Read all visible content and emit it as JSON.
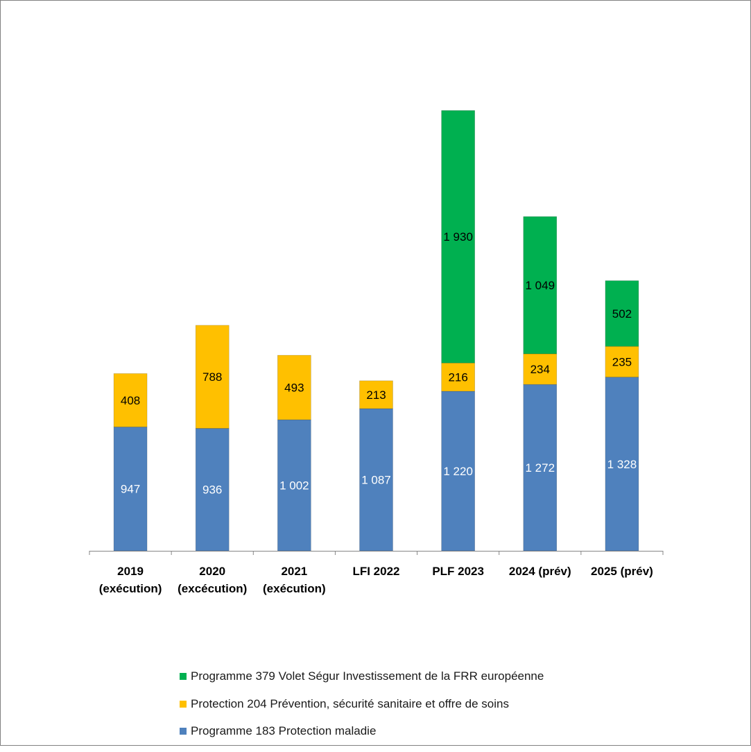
{
  "chart_data": {
    "type": "bar",
    "stacked": true,
    "categories": [
      [
        "2019",
        "(exécution)"
      ],
      [
        "2020",
        "(excécution)"
      ],
      [
        "2021",
        "(exécution)"
      ],
      [
        "LFI 2022"
      ],
      [
        "PLF 2023"
      ],
      [
        "2024 (prév)"
      ],
      [
        "2025 (prév)"
      ]
    ],
    "series": [
      {
        "name": "Programme 183 Protection maladie",
        "color": "#4F81BD",
        "label_color": "#ffffff",
        "values": [
          947,
          936,
          1002,
          1087,
          1220,
          1272,
          1328
        ],
        "labels": [
          "947",
          "936",
          "1 002",
          "1 087",
          "1 220",
          "1 272",
          "1 328"
        ]
      },
      {
        "name": "Protection 204 Prévention, sécurité sanitaire et offre de soins",
        "color": "#FFC000",
        "label_color": "#000000",
        "values": [
          408,
          788,
          493,
          213,
          216,
          234,
          235
        ],
        "labels": [
          "408",
          "788",
          "493",
          "213",
          "216",
          "234",
          "235"
        ]
      },
      {
        "name": "Programme 379 Volet Ségur Investissement de la FRR européenne",
        "color": "#00B050",
        "label_color": "#000000",
        "values": [
          0,
          0,
          0,
          0,
          1930,
          1049,
          502
        ],
        "labels": [
          "",
          "",
          "",
          "",
          "1 930",
          "1 049",
          "502"
        ]
      }
    ],
    "legend_order": [
      2,
      1,
      0
    ],
    "ylim": [
      0,
      3500
    ],
    "title": "",
    "xlabel": "",
    "ylabel": "",
    "grid": false,
    "legend_position": "bottom"
  }
}
